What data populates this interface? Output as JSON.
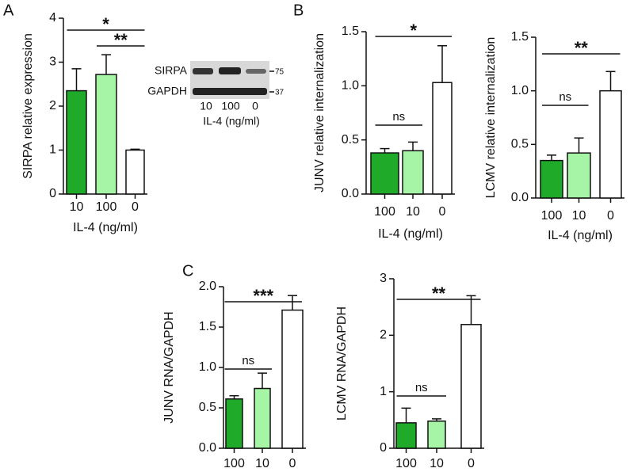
{
  "panels": {
    "a": "A",
    "b": "B",
    "c": "C"
  },
  "blot": {
    "rows": [
      "SIRPA",
      "GAPDH"
    ],
    "markers": [
      "75",
      "37"
    ],
    "lanes": [
      "10",
      "100",
      "0"
    ],
    "xlabel": "IL-4 (ng/ml)"
  },
  "chart_data": [
    {
      "type": "bar",
      "ylabel": "SIRPA relative expression",
      "xlabel": "IL-4 (ng/ml)",
      "categories": [
        "10",
        "100",
        "0"
      ],
      "values": [
        2.35,
        2.72,
        1.0
      ],
      "errors": [
        0.5,
        0.45,
        0.02
      ],
      "colors": [
        "#1faa2a",
        "#a6f5a6",
        "#ffffff"
      ],
      "ylim": [
        0,
        4
      ],
      "yticks": [
        0,
        1,
        2,
        3,
        4
      ],
      "significance": [
        {
          "label": "*",
          "from": "10",
          "to": "0"
        },
        {
          "label": "**",
          "from": "100",
          "to": "0"
        }
      ]
    },
    {
      "type": "bar",
      "ylabel": "JUNV relative internalization",
      "xlabel": "IL-4 (ng/ml)",
      "categories": [
        "100",
        "10",
        "0"
      ],
      "values": [
        0.38,
        0.4,
        1.03
      ],
      "errors": [
        0.04,
        0.08,
        0.34
      ],
      "colors": [
        "#1faa2a",
        "#a6f5a6",
        "#ffffff"
      ],
      "ylim": [
        0,
        1.5
      ],
      "yticks": [
        {
          "value": 0,
          "label": "0.0"
        },
        {
          "value": 0.5,
          "label": "0.5"
        },
        {
          "value": 1,
          "label": "1.0"
        },
        {
          "value": 1.5,
          "label": "1.5"
        }
      ],
      "significance": [
        {
          "label": "ns",
          "from": "100",
          "to": "10"
        },
        {
          "label": "*",
          "from": "100",
          "to": "0"
        }
      ]
    },
    {
      "type": "bar",
      "ylabel": "LCMV relative internalization",
      "xlabel": "IL-4 (ng/ml)",
      "categories": [
        "100",
        "10",
        "0"
      ],
      "values": [
        0.35,
        0.42,
        1.0
      ],
      "errors": [
        0.05,
        0.14,
        0.18
      ],
      "colors": [
        "#1faa2a",
        "#a6f5a6",
        "#ffffff"
      ],
      "ylim": [
        0,
        1.5
      ],
      "yticks": [
        {
          "value": 0,
          "label": "0.0"
        },
        {
          "value": 0.5,
          "label": "0.5"
        },
        {
          "value": 1,
          "label": "1.0"
        },
        {
          "value": 1.5,
          "label": "1.5"
        }
      ],
      "significance": [
        {
          "label": "ns",
          "from": "100",
          "to": "10"
        },
        {
          "label": "**",
          "from": "100",
          "to": "0"
        }
      ]
    },
    {
      "type": "bar",
      "ylabel": "JUNV RNA/GAPDH",
      "categories": [
        "100",
        "10",
        "0"
      ],
      "values": [
        0.61,
        0.74,
        1.71
      ],
      "errors": [
        0.04,
        0.19,
        0.18
      ],
      "colors": [
        "#1faa2a",
        "#a6f5a6",
        "#ffffff"
      ],
      "ylim": [
        0,
        2
      ],
      "yticks": [
        {
          "value": 0,
          "label": "0.0"
        },
        {
          "value": 0.5,
          "label": "0.5"
        },
        {
          "value": 1,
          "label": "1.0"
        },
        {
          "value": 1.5,
          "label": "1.5"
        },
        {
          "value": 2,
          "label": "2.0"
        }
      ],
      "significance": [
        {
          "label": "ns",
          "from": "100",
          "to": "10"
        },
        {
          "label": "***",
          "from": "100",
          "to": "0"
        }
      ]
    },
    {
      "type": "bar",
      "ylabel": "LCMV RNA/GAPDH",
      "categories": [
        "100",
        "10",
        "0"
      ],
      "values": [
        0.45,
        0.48,
        2.19
      ],
      "errors": [
        0.26,
        0.04,
        0.51
      ],
      "colors": [
        "#1faa2a",
        "#a6f5a6",
        "#ffffff"
      ],
      "ylim": [
        0,
        3
      ],
      "yticks": [
        0,
        1,
        2,
        3
      ],
      "significance": [
        {
          "label": "ns",
          "from": "100",
          "to": "10"
        },
        {
          "label": "**",
          "from": "100",
          "to": "0"
        }
      ]
    }
  ]
}
